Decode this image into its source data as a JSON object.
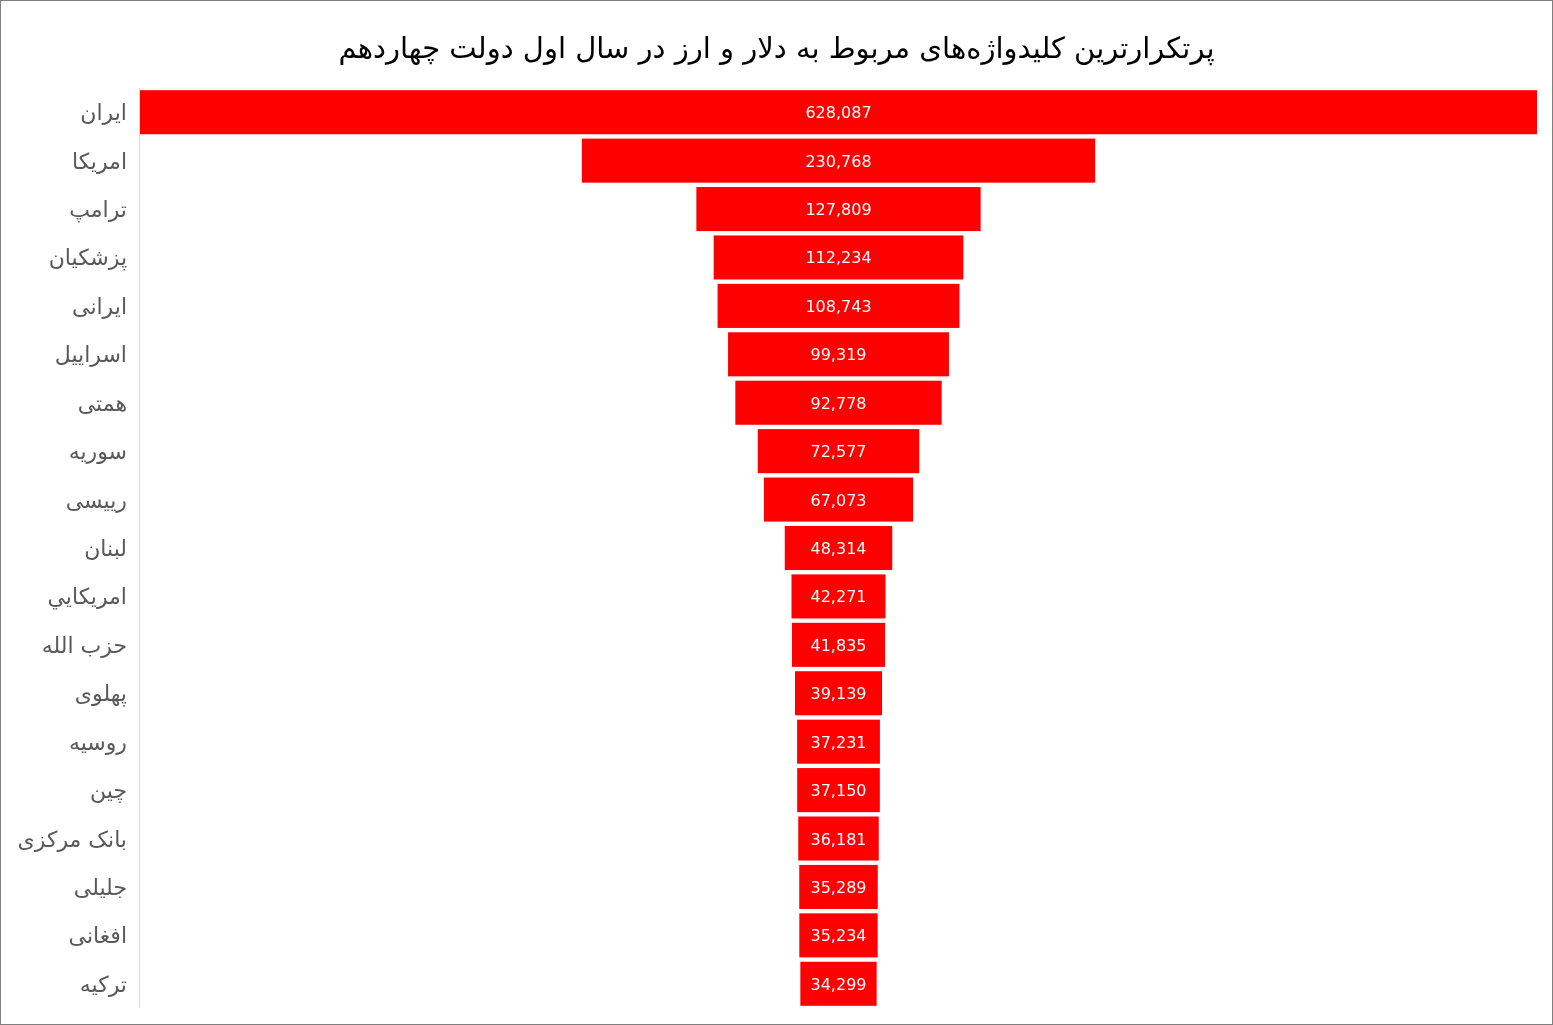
{
  "chart_data": {
    "type": "other",
    "title": "پرتکرارترین کلیدواژه‌های مربوط به دلار و ارز در سال اول دولت چهاردهم",
    "categories": [
      "ایران",
      "امریکا",
      "ترامپ",
      "پزشکیان",
      "ایرانی",
      "اسراییل",
      "همتی",
      "سوریه",
      "رییسی",
      "لبنان",
      "امریکایي",
      "حزب الله",
      "پهلوی",
      "روسیه",
      "چین",
      "بانک مرکزی",
      "جلیلی",
      "افغانی",
      "ترکیه"
    ],
    "values": [
      628087,
      230768,
      127809,
      112234,
      108743,
      99319,
      92778,
      72577,
      67073,
      48314,
      42271,
      41835,
      39139,
      37231,
      37150,
      36181,
      35289,
      35234,
      34299
    ],
    "value_labels": [
      "628,087",
      "230,768",
      "127,809",
      "112,234",
      "108,743",
      "99,319",
      "92,778",
      "72,577",
      "67,073",
      "48,314",
      "42,271",
      "41,835",
      "39,139",
      "37,231",
      "37,150",
      "36,181",
      "35,289",
      "35,234",
      "34,299"
    ],
    "color": "#ff0000"
  }
}
